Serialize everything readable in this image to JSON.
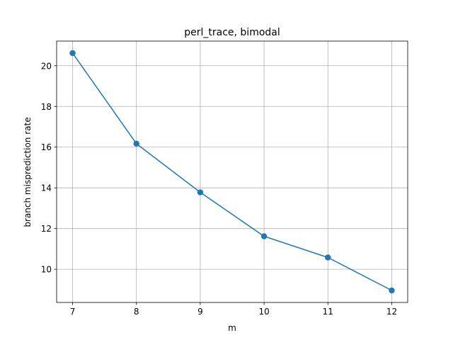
{
  "chart_data": {
    "type": "line",
    "title": "perl_trace, bimodal",
    "xlabel": "m",
    "ylabel": "branch misprediction rate",
    "x": [
      7,
      8,
      9,
      10,
      11,
      12
    ],
    "x_tick_labels": [
      "7",
      "8",
      "9",
      "10",
      "11",
      "12"
    ],
    "y_ticks": [
      10,
      12,
      14,
      16,
      18,
      20
    ],
    "y_tick_labels": [
      "10",
      "12",
      "14",
      "16",
      "18",
      "20"
    ],
    "series": [
      {
        "values": [
          20.62,
          16.17,
          13.78,
          11.62,
          10.58,
          8.96
        ],
        "color": "#1f77b4",
        "marker": "circle"
      }
    ],
    "xlim": [
      6.75,
      12.25
    ],
    "ylim": [
      8.37,
      21.21
    ],
    "grid": true,
    "grid_color": "#b0b0b0",
    "legend": false
  }
}
